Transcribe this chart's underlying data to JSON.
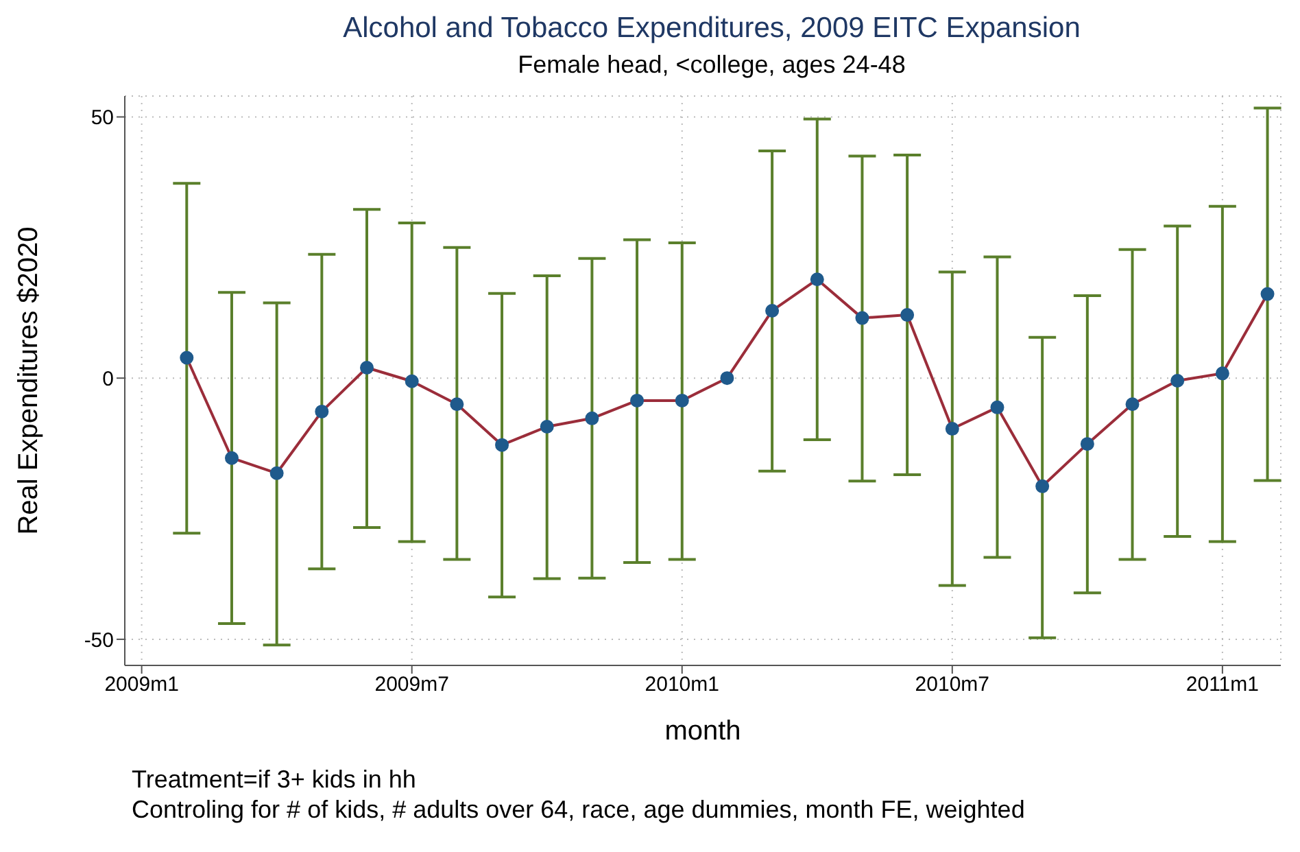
{
  "chart_data": {
    "type": "line",
    "title": "Alcohol and Tobacco Expenditures, 2009 EITC Expansion",
    "subtitle": "Female head, <college, ages 24-48",
    "xlabel": "month",
    "ylabel": "Real Expenditures $2020",
    "x": [
      "2009-02",
      "2009-03",
      "2009-04",
      "2009-05",
      "2009-06",
      "2009-07",
      "2009-08",
      "2009-09",
      "2009-10",
      "2009-11",
      "2009-12",
      "2010-01",
      "2010-02",
      "2010-03",
      "2010-04",
      "2010-05",
      "2010-06",
      "2010-07",
      "2010-08",
      "2010-09",
      "2010-10",
      "2010-11",
      "2010-12",
      "2011-01",
      "2011-02"
    ],
    "series": [
      {
        "color": "#9b2d3a",
        "values": [
          3.9,
          -15.3,
          -18.2,
          -6.4,
          2.0,
          -0.6,
          -5.0,
          -12.8,
          -9.3,
          -7.7,
          -4.3,
          -4.3,
          0,
          12.9,
          18.9,
          11.5,
          12.1,
          -9.7,
          -5.6,
          -20.7,
          -12.6,
          -5.0,
          -0.5,
          0.9,
          16.1
        ],
        "errors": [
          [
            -29.7,
            37.3
          ],
          [
            -47.0,
            16.4
          ],
          [
            -51.1,
            14.4
          ],
          [
            -36.5,
            23.7
          ],
          [
            -28.6,
            32.3
          ],
          [
            -31.3,
            29.7
          ],
          [
            -34.7,
            25.0
          ],
          [
            -41.9,
            16.2
          ],
          [
            -38.4,
            19.6
          ],
          [
            -38.3,
            22.9
          ],
          [
            -35.3,
            26.5
          ],
          [
            -34.7,
            25.9
          ],
          null,
          [
            -17.8,
            43.5
          ],
          [
            -11.8,
            49.6
          ],
          [
            -19.7,
            42.5
          ],
          [
            -18.5,
            42.7
          ],
          [
            -39.7,
            20.3
          ],
          [
            -34.3,
            23.2
          ],
          [
            -49.7,
            7.8
          ],
          [
            -41.1,
            15.8
          ],
          [
            -34.7,
            24.6
          ],
          [
            -30.3,
            29.1
          ],
          [
            -31.3,
            32.9
          ],
          [
            -19.6,
            51.7
          ]
        ]
      }
    ],
    "xlim": [
      "2008-12-20",
      "2011-02-10"
    ],
    "xticks": [
      {
        "value": "2009-01",
        "label": "2009m1"
      },
      {
        "value": "2009-07",
        "label": "2009m7"
      },
      {
        "value": "2010-01",
        "label": "2010m1"
      },
      {
        "value": "2010-07",
        "label": "2010m7"
      },
      {
        "value": "2011-01",
        "label": "2011m1"
      }
    ],
    "ylim": [
      -55,
      54
    ],
    "yticks": [
      -50,
      0,
      50
    ],
    "grid": true,
    "marker": "circle",
    "line_style": "solid",
    "annotations": [
      "Treatment=if 3+ kids in hh",
      "Controling for # of kids, # adults over 64, race, age dummies, month FE, weighted"
    ]
  }
}
